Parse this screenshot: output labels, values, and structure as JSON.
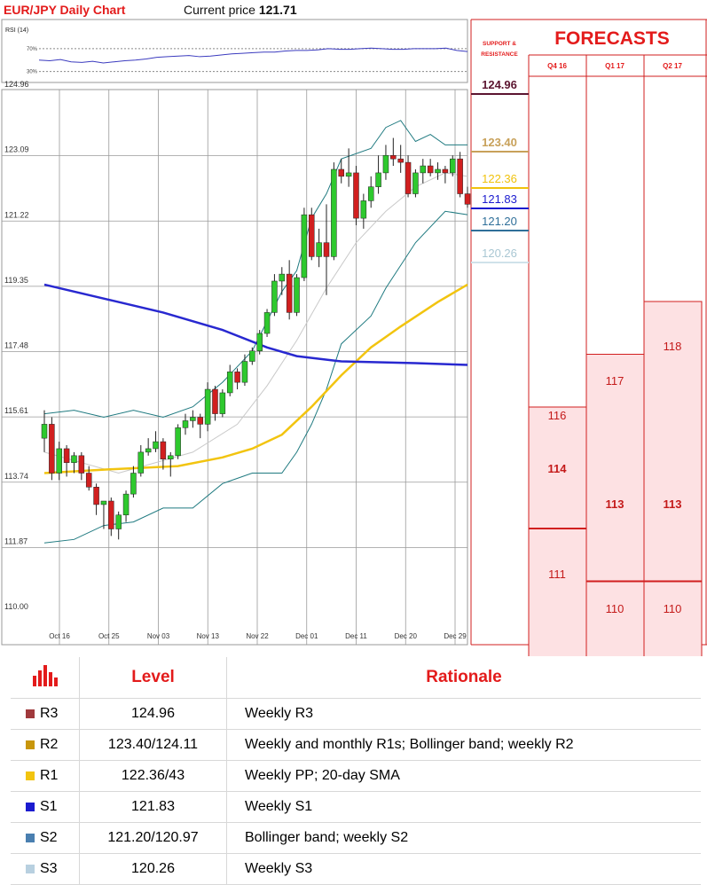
{
  "header": {
    "title": "EUR/JPY Daily Chart",
    "price_label": "Current price",
    "price_value": "121.71"
  },
  "rsi": {
    "label": "RSI (14)",
    "levels": [
      "70%",
      "30%"
    ],
    "values": [
      50,
      49,
      51,
      47,
      46,
      48,
      45,
      47,
      49,
      50,
      52,
      55,
      56,
      57,
      58,
      56,
      57,
      59,
      61,
      62,
      63,
      64,
      64,
      66,
      67,
      67,
      68,
      70,
      69,
      69,
      70,
      71,
      70,
      69,
      69,
      70,
      70,
      70,
      71,
      67,
      65
    ]
  },
  "chart_data": {
    "type": "candlestick",
    "title": "EUR/JPY Daily Chart",
    "yaxis_ticks": [
      "124.96",
      "123.09",
      "121.22",
      "119.35",
      "117.48",
      "115.61",
      "113.74",
      "111.87",
      "110.00"
    ],
    "ylim": [
      110.0,
      124.96
    ],
    "xaxis_ticks": [
      "Oct 16",
      "Oct 25",
      "Nov 03",
      "Nov 13",
      "Nov 22",
      "Dec 01",
      "Dec 11",
      "Dec 20",
      "Dec 29"
    ],
    "candles": [
      {
        "o": 115.0,
        "h": 115.8,
        "l": 114.6,
        "c": 115.4
      },
      {
        "o": 115.4,
        "h": 115.6,
        "l": 113.8,
        "c": 114.0
      },
      {
        "o": 114.0,
        "h": 114.9,
        "l": 113.8,
        "c": 114.7
      },
      {
        "o": 114.7,
        "h": 114.8,
        "l": 113.9,
        "c": 114.3
      },
      {
        "o": 114.3,
        "h": 114.6,
        "l": 114.0,
        "c": 114.5
      },
      {
        "o": 114.5,
        "h": 114.6,
        "l": 113.8,
        "c": 114.0
      },
      {
        "o": 114.0,
        "h": 114.2,
        "l": 113.5,
        "c": 113.6
      },
      {
        "o": 113.6,
        "h": 113.7,
        "l": 112.8,
        "c": 113.1
      },
      {
        "o": 113.1,
        "h": 113.2,
        "l": 112.4,
        "c": 113.2
      },
      {
        "o": 113.2,
        "h": 113.3,
        "l": 112.2,
        "c": 112.4
      },
      {
        "o": 112.4,
        "h": 112.9,
        "l": 112.1,
        "c": 112.8
      },
      {
        "o": 112.8,
        "h": 113.5,
        "l": 112.6,
        "c": 113.4
      },
      {
        "o": 113.4,
        "h": 114.2,
        "l": 113.3,
        "c": 114.0
      },
      {
        "o": 114.0,
        "h": 114.8,
        "l": 113.9,
        "c": 114.6
      },
      {
        "o": 114.6,
        "h": 115.0,
        "l": 114.5,
        "c": 114.7
      },
      {
        "o": 114.7,
        "h": 115.2,
        "l": 114.6,
        "c": 114.9
      },
      {
        "o": 114.9,
        "h": 115.0,
        "l": 114.1,
        "c": 114.4
      },
      {
        "o": 114.4,
        "h": 114.6,
        "l": 113.9,
        "c": 114.5
      },
      {
        "o": 114.5,
        "h": 115.4,
        "l": 114.4,
        "c": 115.3
      },
      {
        "o": 115.3,
        "h": 115.7,
        "l": 115.1,
        "c": 115.5
      },
      {
        "o": 115.5,
        "h": 115.8,
        "l": 115.3,
        "c": 115.6
      },
      {
        "o": 115.6,
        "h": 115.7,
        "l": 115.0,
        "c": 115.4
      },
      {
        "o": 115.4,
        "h": 116.6,
        "l": 115.2,
        "c": 116.4
      },
      {
        "o": 116.4,
        "h": 116.5,
        "l": 115.5,
        "c": 115.7
      },
      {
        "o": 115.7,
        "h": 116.4,
        "l": 115.6,
        "c": 116.3
      },
      {
        "o": 116.3,
        "h": 117.1,
        "l": 116.2,
        "c": 116.9
      },
      {
        "o": 116.9,
        "h": 117.0,
        "l": 116.4,
        "c": 116.6
      },
      {
        "o": 116.6,
        "h": 117.4,
        "l": 116.5,
        "c": 117.2
      },
      {
        "o": 117.2,
        "h": 117.6,
        "l": 117.1,
        "c": 117.5
      },
      {
        "o": 117.5,
        "h": 118.1,
        "l": 117.4,
        "c": 118.0
      },
      {
        "o": 118.0,
        "h": 118.7,
        "l": 117.9,
        "c": 118.6
      },
      {
        "o": 118.6,
        "h": 119.7,
        "l": 118.5,
        "c": 119.5
      },
      {
        "o": 119.5,
        "h": 119.9,
        "l": 119.1,
        "c": 119.7
      },
      {
        "o": 119.7,
        "h": 120.1,
        "l": 118.4,
        "c": 118.6
      },
      {
        "o": 118.6,
        "h": 119.7,
        "l": 118.5,
        "c": 119.6
      },
      {
        "o": 119.6,
        "h": 121.6,
        "l": 119.5,
        "c": 121.4
      },
      {
        "o": 121.4,
        "h": 121.6,
        "l": 120.1,
        "c": 120.2
      },
      {
        "o": 120.2,
        "h": 121.0,
        "l": 119.9,
        "c": 120.6
      },
      {
        "o": 120.6,
        "h": 121.7,
        "l": 119.1,
        "c": 120.2
      },
      {
        "o": 120.2,
        "h": 122.9,
        "l": 120.1,
        "c": 122.7
      },
      {
        "o": 122.7,
        "h": 123.0,
        "l": 122.3,
        "c": 122.5
      },
      {
        "o": 122.5,
        "h": 123.3,
        "l": 122.2,
        "c": 122.6
      },
      {
        "o": 122.6,
        "h": 122.8,
        "l": 121.1,
        "c": 121.3
      },
      {
        "o": 121.3,
        "h": 122.0,
        "l": 121.0,
        "c": 121.8
      },
      {
        "o": 121.8,
        "h": 122.5,
        "l": 121.6,
        "c": 122.2
      },
      {
        "o": 122.2,
        "h": 123.1,
        "l": 122.0,
        "c": 122.6
      },
      {
        "o": 122.6,
        "h": 123.4,
        "l": 122.4,
        "c": 123.1
      },
      {
        "o": 123.1,
        "h": 123.6,
        "l": 122.8,
        "c": 123.0
      },
      {
        "o": 123.0,
        "h": 123.4,
        "l": 122.6,
        "c": 122.9
      },
      {
        "o": 122.9,
        "h": 123.1,
        "l": 121.9,
        "c": 122.0
      },
      {
        "o": 122.0,
        "h": 122.7,
        "l": 121.9,
        "c": 122.6
      },
      {
        "o": 122.6,
        "h": 123.0,
        "l": 122.3,
        "c": 122.8
      },
      {
        "o": 122.8,
        "h": 123.0,
        "l": 122.5,
        "c": 122.6
      },
      {
        "o": 122.6,
        "h": 122.9,
        "l": 122.4,
        "c": 122.7
      },
      {
        "o": 122.7,
        "h": 122.8,
        "l": 122.3,
        "c": 122.6
      },
      {
        "o": 122.6,
        "h": 123.1,
        "l": 122.5,
        "c": 123.0
      },
      {
        "o": 123.0,
        "h": 123.2,
        "l": 121.9,
        "c": 122.0
      },
      {
        "o": 122.0,
        "h": 122.2,
        "l": 121.6,
        "c": 121.7
      }
    ],
    "sma200": [
      [
        0,
        119.4
      ],
      [
        8,
        119.0
      ],
      [
        16,
        118.6
      ],
      [
        24,
        118.1
      ],
      [
        30,
        117.6
      ],
      [
        34,
        117.35
      ],
      [
        40,
        117.2
      ],
      [
        50,
        117.15
      ],
      [
        57,
        117.1
      ]
    ],
    "sma50": [
      [
        0,
        114.0
      ],
      [
        8,
        114.1
      ],
      [
        18,
        114.2
      ],
      [
        24,
        114.45
      ],
      [
        28,
        114.7
      ],
      [
        32,
        115.1
      ],
      [
        36,
        115.9
      ],
      [
        40,
        116.8
      ],
      [
        44,
        117.6
      ],
      [
        48,
        118.2
      ],
      [
        53,
        118.9
      ],
      [
        57,
        119.4
      ]
    ],
    "sma20": [
      [
        0,
        114.6
      ],
      [
        10,
        114.0
      ],
      [
        20,
        114.6
      ],
      [
        26,
        115.4
      ],
      [
        30,
        116.5
      ],
      [
        34,
        117.8
      ],
      [
        38,
        119.3
      ],
      [
        42,
        120.6
      ],
      [
        46,
        121.5
      ],
      [
        50,
        122.2
      ],
      [
        54,
        122.6
      ],
      [
        57,
        122.5
      ]
    ],
    "boll_upper": [
      [
        0,
        115.7
      ],
      [
        4,
        115.8
      ],
      [
        8,
        115.6
      ],
      [
        12,
        115.8
      ],
      [
        16,
        115.6
      ],
      [
        20,
        115.9
      ],
      [
        24,
        116.6
      ],
      [
        28,
        117.5
      ],
      [
        32,
        119.2
      ],
      [
        34,
        119.8
      ],
      [
        36,
        121.3
      ],
      [
        38,
        122.0
      ],
      [
        40,
        123.0
      ],
      [
        44,
        123.3
      ],
      [
        46,
        123.9
      ],
      [
        48,
        124.1
      ],
      [
        50,
        123.5
      ],
      [
        52,
        123.7
      ],
      [
        54,
        123.4
      ],
      [
        57,
        123.4
      ]
    ],
    "boll_lower": [
      [
        0,
        112.0
      ],
      [
        4,
        112.1
      ],
      [
        8,
        112.5
      ],
      [
        12,
        112.6
      ],
      [
        16,
        113.0
      ],
      [
        20,
        113.0
      ],
      [
        24,
        113.7
      ],
      [
        28,
        114.0
      ],
      [
        32,
        114.0
      ],
      [
        34,
        114.6
      ],
      [
        36,
        115.4
      ],
      [
        38,
        116.4
      ],
      [
        40,
        117.7
      ],
      [
        44,
        118.5
      ],
      [
        46,
        119.3
      ],
      [
        50,
        120.6
      ],
      [
        54,
        121.5
      ],
      [
        57,
        121.4
      ]
    ]
  },
  "support_resistance": {
    "header": "SUPPORT & RESISTANCE",
    "levels": [
      {
        "name": "R3",
        "value": "124.96",
        "color": "#5b1530",
        "line": "#5b1530"
      },
      {
        "name": "R2",
        "value": "123.40",
        "color": "#c8a15a",
        "line": "#c8a15a"
      },
      {
        "name": "R1",
        "value": "122.36",
        "color": "#f0c20c",
        "line": "#f0c20c"
      },
      {
        "name": "S1",
        "value": "121.83",
        "color": "#1b1bcf",
        "line": "#1b1bcf"
      },
      {
        "name": "S2",
        "value": "121.20",
        "color": "#2f6f99",
        "line": "#2f6f99"
      },
      {
        "name": "S3",
        "value": "120.26",
        "color": "#a9c7d3",
        "line": "#cfe2ea"
      }
    ]
  },
  "forecasts": {
    "title": "FORECASTS",
    "quarters": [
      {
        "label": "Q4 16",
        "high": "116",
        "mid": "114",
        "low": "111"
      },
      {
        "label": "Q1 17",
        "high": "117",
        "mid": "113",
        "low": "110"
      },
      {
        "label": "Q2 17",
        "high": "118",
        "mid": "113",
        "low": "110"
      }
    ]
  },
  "table": {
    "headers": [
      "Level",
      "Rationale"
    ],
    "rows": [
      {
        "name": "R3",
        "level": "124.96",
        "rationale": "Weekly R3",
        "color": "#a0393c"
      },
      {
        "name": "R2",
        "level": "123.40/124.11",
        "rationale": "Weekly and monthly R1s; Bollinger band; weekly R2",
        "color": "#c8960c"
      },
      {
        "name": "R1",
        "level": "122.36/43",
        "rationale": "Weekly PP; 20-day SMA",
        "color": "#f2c40f"
      },
      {
        "name": "S1",
        "level": "121.83",
        "rationale": "Weekly S1",
        "color": "#1b1bcf"
      },
      {
        "name": "S2",
        "level": "121.20/120.97",
        "rationale": "Bollinger band; weekly S2",
        "color": "#4a7fb0"
      },
      {
        "name": "S3",
        "level": "120.26",
        "rationale": "Weekly S3",
        "color": "#b8d0e0"
      }
    ]
  }
}
